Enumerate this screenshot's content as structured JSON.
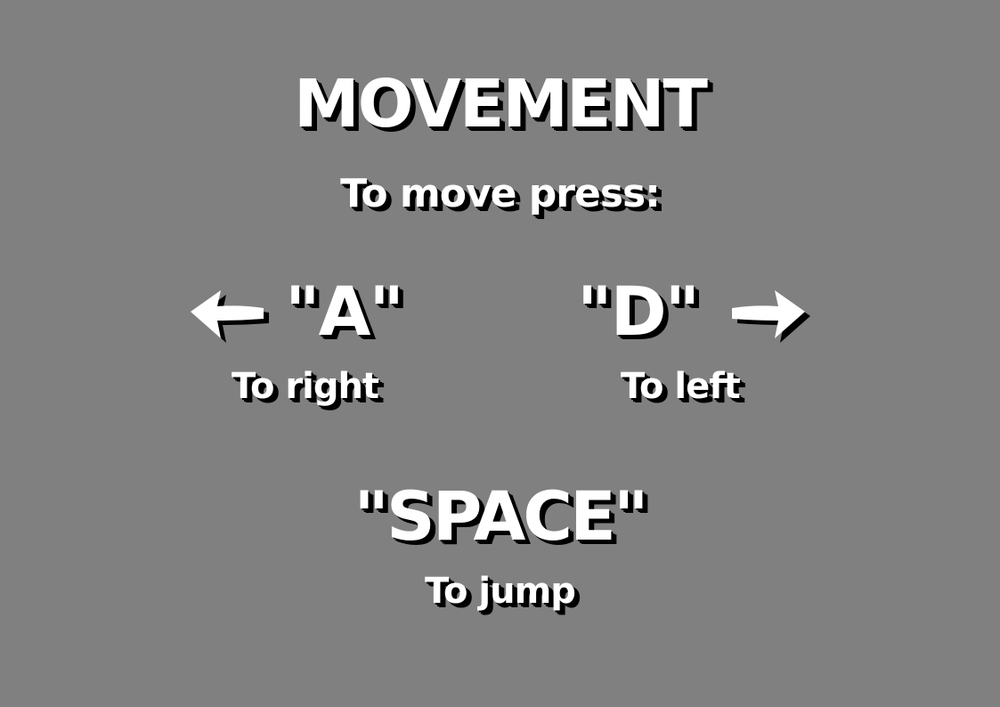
{
  "screen": {
    "background": "#808080",
    "text_color": "#ffffff",
    "shadow_color": "#000000"
  },
  "title": "MOVEMENT",
  "subtitle": "To move press:",
  "controls": [
    {
      "key": "\"A\"",
      "label": "To right",
      "icon": "arrow-left-icon"
    },
    {
      "key": "\"D\"",
      "label": "To left",
      "icon": "arrow-right-icon"
    }
  ],
  "jump": {
    "key": "\"SPACE\"",
    "label": "To jump"
  }
}
